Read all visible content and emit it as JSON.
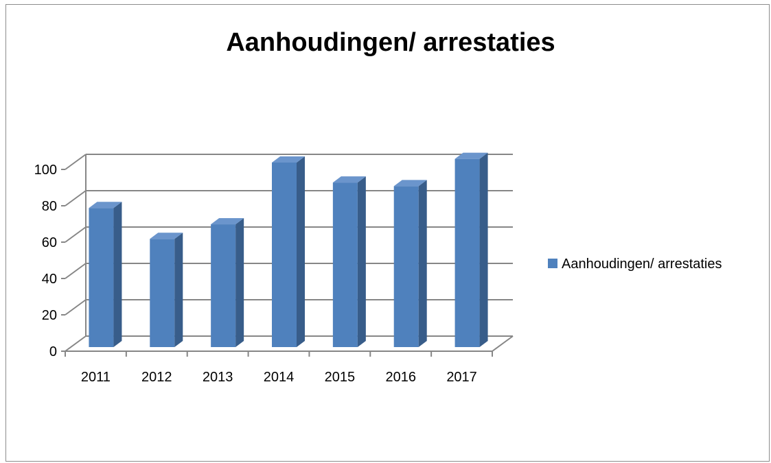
{
  "chart_data": {
    "type": "bar",
    "title": "Aanhoudingen/ arrestaties",
    "categories": [
      "2011",
      "2012",
      "2013",
      "2014",
      "2015",
      "2016",
      "2017"
    ],
    "series": [
      {
        "name": "Aanhoudingen/ arrestaties",
        "values": [
          72,
          55,
          63,
          97,
          86,
          84,
          99
        ]
      }
    ],
    "yticks": [
      "0",
      "20",
      "40",
      "60",
      "80",
      "100"
    ],
    "ylim": [
      0,
      100
    ],
    "grid": true,
    "legend_position": "right",
    "colors": {
      "bar_front": "#4f81bd",
      "bar_side": "#385d8a",
      "bar_top": "#6b95cc",
      "grid": "#868686"
    }
  }
}
